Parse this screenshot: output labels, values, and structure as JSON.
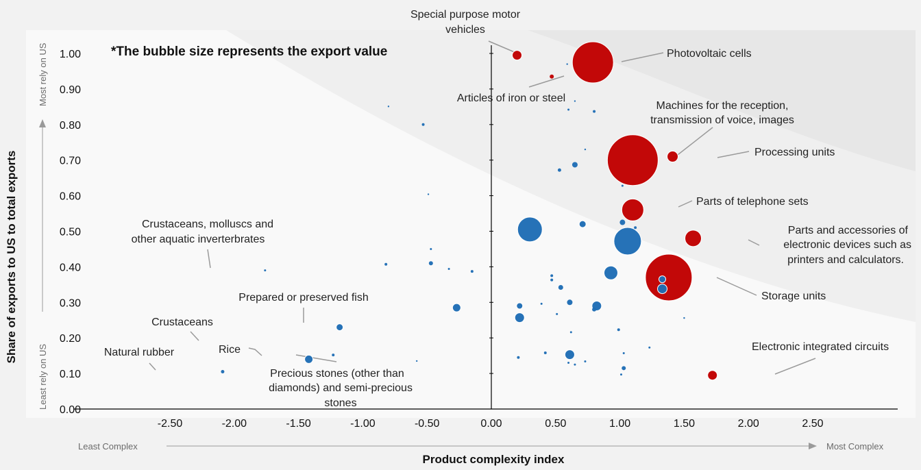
{
  "chart_data": {
    "type": "scatter",
    "note": "*The bubble size represents the export value",
    "xlabel": "Product complexity index",
    "ylabel": "Share of exports to US to total exports",
    "x_low_label": "Least Complex",
    "x_high_label": "Most Complex",
    "y_low_label": "Least rely on US",
    "y_high_label": "Most rely on US",
    "xlim": [
      -2.5,
      2.5
    ],
    "ylim": [
      0,
      1.0
    ],
    "x_ticks": [
      "-2.50",
      "-2.00",
      "-1.50",
      "-1.00",
      "-0.50",
      "0.00",
      "0.50",
      "1.00",
      "1.50",
      "2.00",
      "2.50"
    ],
    "y_ticks": [
      "0.00",
      "0.10",
      "0.20",
      "0.30",
      "0.40",
      "0.50",
      "0.60",
      "0.70",
      "0.80",
      "0.90",
      "1.00"
    ],
    "grid": false,
    "colors": {
      "highlight": "#c00000",
      "other": "#1f6db5",
      "background": "#f2f2f2",
      "plot_bg": "#f9f9f9",
      "region": "#e6e6e6"
    },
    "bubbles": [
      {
        "x": 0.79,
        "y": 0.975,
        "r": 30,
        "color": "highlight",
        "label": "Photovoltaic cells"
      },
      {
        "x": 1.1,
        "y": 0.7,
        "r": 37,
        "color": "highlight",
        "label": "Machines for the reception, transmission of voice, images"
      },
      {
        "x": 1.38,
        "y": 0.37,
        "r": 34,
        "color": "highlight",
        "label": "Storage units"
      },
      {
        "x": 1.1,
        "y": 0.56,
        "r": 16,
        "color": "highlight",
        "label": "Parts of telephone sets"
      },
      {
        "x": 1.57,
        "y": 0.48,
        "r": 12,
        "color": "highlight",
        "label": "Parts and accessories of electronic devices such as printers and calculators."
      },
      {
        "x": 1.41,
        "y": 0.71,
        "r": 8,
        "color": "highlight",
        "label": "Processing units"
      },
      {
        "x": 1.72,
        "y": 0.095,
        "r": 7,
        "color": "highlight",
        "label": "Electronic integrated circuits"
      },
      {
        "x": 0.2,
        "y": 0.995,
        "r": 7,
        "color": "highlight",
        "label": "Special purpose motor vehicles"
      },
      {
        "x": 0.47,
        "y": 0.935,
        "r": 3,
        "color": "highlight",
        "label": "Articles of iron or steel"
      },
      {
        "x": -1.42,
        "y": 0.14,
        "r": 6,
        "color": "other",
        "label": "Rice"
      },
      {
        "x": -1.18,
        "y": 0.23,
        "r": 5,
        "color": "other",
        "label": "Prepared or preserved fish"
      },
      {
        "x": -2.09,
        "y": 0.105,
        "r": 2.5,
        "color": "other",
        "label": "Natural rubber"
      },
      {
        "x": -1.76,
        "y": 0.39,
        "r": 1.5,
        "color": "other",
        "label": "Crustaceans, molluscs and other aquatic inverterbrates"
      },
      {
        "x": -1.23,
        "y": 0.152,
        "r": 2,
        "color": "other",
        "label": "Precious stones (other than diamonds) and semi-precious stones"
      },
      {
        "x": -1.82,
        "y": 0.2,
        "r": 0,
        "color": "other",
        "label": "Crustaceans"
      },
      {
        "x": 0.3,
        "y": 0.505,
        "r": 18,
        "color": "other",
        "label": ""
      },
      {
        "x": 1.06,
        "y": 0.472,
        "r": 20,
        "color": "other",
        "label": ""
      },
      {
        "x": 0.93,
        "y": 0.383,
        "r": 10,
        "color": "other",
        "label": ""
      },
      {
        "x": 0.82,
        "y": 0.29,
        "r": 7,
        "color": "other",
        "label": ""
      },
      {
        "x": -0.27,
        "y": 0.285,
        "r": 6,
        "color": "other",
        "label": ""
      },
      {
        "x": 0.22,
        "y": 0.257,
        "r": 7,
        "color": "other",
        "label": ""
      },
      {
        "x": 0.61,
        "y": 0.153,
        "r": 7,
        "color": "other",
        "label": ""
      },
      {
        "x": 1.33,
        "y": 0.338,
        "r": 7,
        "color": "other",
        "label": ""
      },
      {
        "x": 1.33,
        "y": 0.365,
        "r": 5,
        "color": "other",
        "label": ""
      },
      {
        "x": 0.71,
        "y": 0.52,
        "r": 5,
        "color": "other",
        "label": ""
      },
      {
        "x": 1.02,
        "y": 0.525,
        "r": 4,
        "color": "other",
        "label": ""
      },
      {
        "x": 0.65,
        "y": 0.687,
        "r": 4,
        "color": "other",
        "label": ""
      },
      {
        "x": 0.22,
        "y": 0.29,
        "r": 4.5,
        "color": "other",
        "label": ""
      },
      {
        "x": 0.61,
        "y": 0.3,
        "r": 4,
        "color": "other",
        "label": ""
      },
      {
        "x": 0.54,
        "y": 0.342,
        "r": 3.5,
        "color": "other",
        "label": ""
      },
      {
        "x": -0.47,
        "y": 0.41,
        "r": 3,
        "color": "other",
        "label": ""
      },
      {
        "x": -0.53,
        "y": 0.8,
        "r": 2,
        "color": "other",
        "label": ""
      },
      {
        "x": -0.82,
        "y": 0.407,
        "r": 2,
        "color": "other",
        "label": ""
      },
      {
        "x": -0.15,
        "y": 0.387,
        "r": 2,
        "color": "other",
        "label": ""
      },
      {
        "x": 0.53,
        "y": 0.672,
        "r": 2.5,
        "color": "other",
        "label": ""
      },
      {
        "x": 0.8,
        "y": 0.28,
        "r": 3,
        "color": "other",
        "label": ""
      },
      {
        "x": 1.03,
        "y": 0.115,
        "r": 3,
        "color": "other",
        "label": ""
      },
      {
        "x": 0.99,
        "y": 0.223,
        "r": 2,
        "color": "other",
        "label": ""
      },
      {
        "x": 1.12,
        "y": 0.51,
        "r": 2,
        "color": "other",
        "label": ""
      },
      {
        "x": -0.47,
        "y": 0.45,
        "r": 1.5,
        "color": "other",
        "label": ""
      },
      {
        "x": -0.33,
        "y": 0.394,
        "r": 1.5,
        "color": "other",
        "label": ""
      },
      {
        "x": -0.49,
        "y": 0.604,
        "r": 1.2,
        "color": "other",
        "label": ""
      },
      {
        "x": -0.8,
        "y": 0.851,
        "r": 1.2,
        "color": "other",
        "label": ""
      },
      {
        "x": -0.58,
        "y": 0.135,
        "r": 1.2,
        "color": "other",
        "label": ""
      },
      {
        "x": 0.6,
        "y": 0.842,
        "r": 1.5,
        "color": "other",
        "label": ""
      },
      {
        "x": 0.65,
        "y": 0.866,
        "r": 1.2,
        "color": "other",
        "label": ""
      },
      {
        "x": 0.59,
        "y": 0.97,
        "r": 1.2,
        "color": "other",
        "label": ""
      },
      {
        "x": 0.8,
        "y": 0.837,
        "r": 2,
        "color": "other",
        "label": ""
      },
      {
        "x": 0.73,
        "y": 0.73,
        "r": 1.2,
        "color": "other",
        "label": ""
      },
      {
        "x": 1.02,
        "y": 0.628,
        "r": 1.5,
        "color": "other",
        "label": ""
      },
      {
        "x": 0.47,
        "y": 0.375,
        "r": 2,
        "color": "other",
        "label": ""
      },
      {
        "x": 0.47,
        "y": 0.363,
        "r": 2,
        "color": "other",
        "label": ""
      },
      {
        "x": 0.39,
        "y": 0.296,
        "r": 1.5,
        "color": "other",
        "label": ""
      },
      {
        "x": 0.51,
        "y": 0.267,
        "r": 1.5,
        "color": "other",
        "label": ""
      },
      {
        "x": 0.62,
        "y": 0.216,
        "r": 1.5,
        "color": "other",
        "label": ""
      },
      {
        "x": 0.21,
        "y": 0.145,
        "r": 2,
        "color": "other",
        "label": ""
      },
      {
        "x": 0.42,
        "y": 0.158,
        "r": 2,
        "color": "other",
        "label": ""
      },
      {
        "x": 0.6,
        "y": 0.13,
        "r": 1.5,
        "color": "other",
        "label": ""
      },
      {
        "x": 0.65,
        "y": 0.125,
        "r": 1.5,
        "color": "other",
        "label": ""
      },
      {
        "x": 0.73,
        "y": 0.134,
        "r": 1.5,
        "color": "other",
        "label": ""
      },
      {
        "x": 1.01,
        "y": 0.097,
        "r": 1.5,
        "color": "other",
        "label": ""
      },
      {
        "x": 1.03,
        "y": 0.157,
        "r": 1.5,
        "color": "other",
        "label": ""
      },
      {
        "x": 1.23,
        "y": 0.173,
        "r": 1.5,
        "color": "other",
        "label": ""
      },
      {
        "x": 1.5,
        "y": 0.256,
        "r": 1.2,
        "color": "other",
        "label": ""
      }
    ]
  }
}
